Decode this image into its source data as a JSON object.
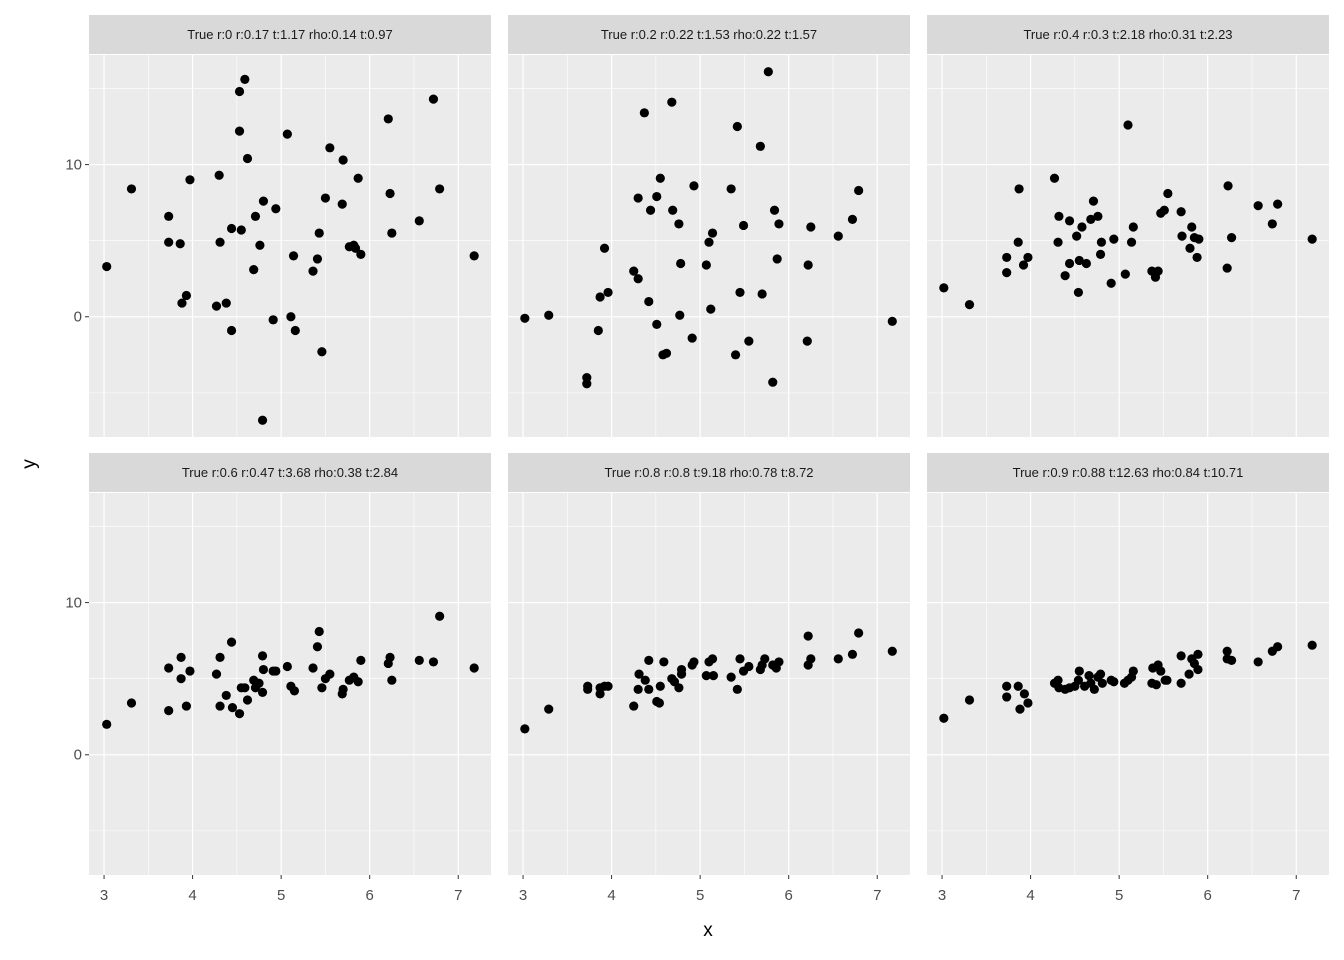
{
  "axis_titles": {
    "x": "x",
    "y": "y"
  },
  "chart_data": [
    {
      "type": "scatter",
      "title": "True r:0  r:0.17  t:1.17  rho:0.14  t:0.97",
      "color": "#000000",
      "xlim": [
        2.83,
        7.37
      ],
      "ylim": [
        -7.9,
        17.2
      ],
      "xticks": [
        3,
        4,
        5,
        6,
        7
      ],
      "yticks": [
        0,
        10
      ],
      "grid": true,
      "x": [
        3.03,
        3.31,
        3.73,
        3.73,
        3.86,
        3.88,
        3.93,
        3.97,
        4.27,
        4.3,
        4.31,
        4.38,
        4.44,
        4.44,
        4.53,
        4.53,
        4.55,
        4.59,
        4.62,
        4.69,
        4.71,
        4.76,
        4.79,
        4.8,
        4.91,
        4.94,
        5.07,
        5.11,
        5.14,
        5.16,
        5.36,
        5.41,
        5.43,
        5.46,
        5.5,
        5.55,
        5.69,
        5.7,
        5.77,
        5.82,
        5.84,
        5.87,
        5.9,
        6.21,
        6.23,
        6.25,
        6.56,
        6.72,
        6.79,
        7.18
      ],
      "y": [
        3.3,
        8.4,
        6.6,
        4.9,
        4.8,
        0.9,
        1.4,
        9.0,
        0.7,
        9.3,
        4.9,
        0.9,
        -0.9,
        5.8,
        14.8,
        12.2,
        5.7,
        15.6,
        10.4,
        3.1,
        6.6,
        4.7,
        -6.8,
        7.6,
        -0.2,
        7.1,
        12.0,
        0.0,
        4.0,
        -0.9,
        3.0,
        3.8,
        5.5,
        -2.3,
        7.8,
        11.1,
        7.4,
        10.3,
        4.6,
        4.7,
        4.5,
        9.1,
        4.1,
        13.0,
        8.1,
        5.5,
        6.3,
        14.3,
        8.4,
        4.0
      ]
    },
    {
      "type": "scatter",
      "title": "True r:0.2  r:0.22  t:1.53  rho:0.22  t:1.57",
      "color": "#000000",
      "xlim": [
        2.83,
        7.37
      ],
      "ylim": [
        -7.9,
        17.2
      ],
      "xticks": [
        3,
        4,
        5,
        6,
        7
      ],
      "yticks": [
        0,
        10
      ],
      "grid": true,
      "x": [
        3.02,
        3.29,
        3.72,
        3.72,
        3.85,
        3.87,
        3.92,
        3.96,
        4.25,
        4.3,
        4.3,
        4.37,
        4.42,
        4.44,
        4.51,
        4.51,
        4.55,
        4.58,
        4.62,
        4.68,
        4.69,
        4.76,
        4.77,
        4.78,
        4.91,
        4.93,
        5.07,
        5.1,
        5.14,
        5.12,
        5.35,
        5.4,
        5.42,
        5.45,
        5.49,
        5.55,
        5.68,
        5.7,
        5.77,
        5.82,
        5.84,
        5.87,
        5.89,
        6.22,
        6.21,
        6.25,
        6.56,
        6.72,
        6.79,
        7.17
      ],
      "y": [
        -0.1,
        0.1,
        -4.0,
        -4.4,
        -0.9,
        1.3,
        4.5,
        1.6,
        3.0,
        2.5,
        7.8,
        13.4,
        1.0,
        7.0,
        -0.5,
        7.9,
        9.1,
        -2.5,
        -2.4,
        14.1,
        7.0,
        6.1,
        0.1,
        3.5,
        -1.4,
        8.6,
        3.4,
        4.9,
        5.5,
        0.5,
        8.4,
        -2.5,
        12.5,
        1.6,
        6.0,
        -1.6,
        11.2,
        1.5,
        16.1,
        -4.3,
        7.0,
        3.8,
        6.1,
        3.4,
        -1.6,
        5.9,
        5.3,
        6.4,
        8.3,
        -0.3
      ]
    },
    {
      "type": "scatter",
      "title": "True r:0.4  r:0.3  t:2.18  rho:0.31  t:2.23",
      "color": "#000000",
      "xlim": [
        2.83,
        7.37
      ],
      "ylim": [
        -7.9,
        17.2
      ],
      "xticks": [
        3,
        4,
        5,
        6,
        7
      ],
      "yticks": [
        0,
        10
      ],
      "grid": true,
      "x": [
        3.02,
        3.31,
        3.73,
        3.73,
        3.86,
        3.87,
        3.92,
        3.97,
        4.27,
        4.31,
        4.32,
        4.39,
        4.44,
        4.44,
        4.52,
        4.54,
        4.55,
        4.58,
        4.63,
        4.68,
        4.71,
        4.76,
        4.79,
        4.8,
        4.91,
        4.94,
        5.07,
        5.1,
        5.14,
        5.16,
        5.37,
        5.41,
        5.44,
        5.47,
        5.51,
        5.55,
        5.7,
        5.71,
        5.8,
        5.82,
        5.85,
        5.88,
        5.9,
        6.22,
        6.23,
        6.27,
        6.57,
        6.73,
        6.79,
        7.18
      ],
      "y": [
        1.9,
        0.8,
        2.9,
        3.9,
        4.9,
        8.4,
        3.4,
        3.9,
        9.1,
        4.9,
        6.6,
        2.7,
        6.3,
        3.5,
        5.3,
        1.6,
        3.7,
        5.9,
        3.5,
        6.4,
        7.6,
        6.6,
        4.1,
        4.9,
        2.2,
        5.1,
        2.8,
        12.6,
        4.9,
        5.9,
        3.0,
        2.6,
        3.0,
        6.8,
        7.0,
        8.1,
        6.9,
        5.3,
        4.5,
        5.9,
        5.2,
        3.9,
        5.1,
        3.2,
        8.6,
        5.2,
        7.3,
        6.1,
        7.4,
        5.1
      ]
    },
    {
      "type": "scatter",
      "title": "True r:0.6  r:0.47  t:3.68  rho:0.38  t:2.84",
      "color": "#000000",
      "xlim": [
        2.83,
        7.37
      ],
      "ylim": [
        -7.9,
        17.2
      ],
      "xticks": [
        3,
        4,
        5,
        6,
        7
      ],
      "yticks": [
        0,
        10
      ],
      "grid": true,
      "x": [
        3.03,
        3.31,
        3.73,
        3.73,
        3.87,
        3.87,
        3.93,
        3.97,
        4.27,
        4.31,
        4.31,
        4.38,
        4.44,
        4.45,
        4.53,
        4.55,
        4.59,
        4.62,
        4.69,
        4.71,
        4.75,
        4.79,
        4.79,
        4.8,
        4.91,
        4.94,
        5.07,
        5.11,
        5.15,
        5.36,
        5.41,
        5.43,
        5.46,
        5.5,
        5.55,
        5.69,
        5.7,
        5.77,
        5.82,
        5.87,
        5.9,
        6.21,
        6.23,
        6.25,
        6.56,
        6.72,
        6.79,
        7.18
      ],
      "y": [
        2.0,
        3.4,
        5.7,
        2.9,
        6.4,
        5.0,
        3.2,
        5.5,
        5.3,
        3.2,
        6.4,
        3.9,
        7.4,
        3.1,
        2.7,
        4.4,
        4.4,
        3.6,
        4.9,
        4.4,
        4.7,
        6.5,
        4.1,
        5.6,
        5.5,
        5.5,
        5.8,
        4.5,
        4.2,
        5.7,
        7.1,
        8.1,
        4.4,
        5.0,
        5.3,
        4.0,
        4.3,
        4.9,
        5.1,
        4.8,
        6.2,
        6.0,
        6.4,
        4.9,
        6.2,
        6.1,
        9.1,
        5.7
      ]
    },
    {
      "type": "scatter",
      "title": "True r:0.8  r:0.8  t:9.18  rho:0.78  t:8.72",
      "color": "#000000",
      "xlim": [
        2.83,
        7.37
      ],
      "ylim": [
        -7.9,
        17.2
      ],
      "xticks": [
        3,
        4,
        5,
        6,
        7
      ],
      "yticks": [
        0,
        10
      ],
      "grid": true,
      "x": [
        3.02,
        3.29,
        3.73,
        3.73,
        3.87,
        3.87,
        3.92,
        3.96,
        4.25,
        4.3,
        4.31,
        4.38,
        4.42,
        4.42,
        4.51,
        4.54,
        4.55,
        4.59,
        4.68,
        4.71,
        4.76,
        4.79,
        4.79,
        4.91,
        4.93,
        5.07,
        5.1,
        5.14,
        5.15,
        5.35,
        5.42,
        5.45,
        5.49,
        5.55,
        5.68,
        5.7,
        5.73,
        5.82,
        5.86,
        5.89,
        6.22,
        6.22,
        6.25,
        6.56,
        6.72,
        6.79,
        7.17
      ],
      "y": [
        1.7,
        3.0,
        4.5,
        4.3,
        4.0,
        4.4,
        4.5,
        4.5,
        3.2,
        4.3,
        5.3,
        4.9,
        6.2,
        4.3,
        3.5,
        3.4,
        4.5,
        6.1,
        5.0,
        4.8,
        4.4,
        5.6,
        5.3,
        5.9,
        6.1,
        5.2,
        6.1,
        6.3,
        5.2,
        5.1,
        4.3,
        6.3,
        5.5,
        5.8,
        5.6,
        5.9,
        6.3,
        5.9,
        5.7,
        6.1,
        7.8,
        5.9,
        6.3,
        6.3,
        6.6,
        8.0,
        6.8
      ]
    },
    {
      "type": "scatter",
      "title": "True r:0.9  r:0.88  t:12.63  rho:0.84  t:10.71",
      "color": "#000000",
      "xlim": [
        2.83,
        7.37
      ],
      "ylim": [
        -7.9,
        17.2
      ],
      "xticks": [
        3,
        4,
        5,
        6,
        7
      ],
      "yticks": [
        0,
        10
      ],
      "grid": true,
      "x": [
        3.02,
        3.31,
        3.73,
        3.73,
        3.86,
        3.88,
        3.93,
        3.97,
        4.27,
        4.31,
        4.32,
        4.39,
        4.44,
        4.5,
        4.54,
        4.55,
        4.61,
        4.66,
        4.68,
        4.72,
        4.76,
        4.79,
        4.81,
        4.91,
        4.94,
        5.06,
        5.1,
        5.14,
        5.16,
        5.37,
        5.38,
        5.42,
        5.44,
        5.47,
        5.52,
        5.54,
        5.7,
        5.7,
        5.79,
        5.82,
        5.85,
        5.89,
        5.89,
        6.22,
        6.22,
        6.27,
        6.57,
        6.73,
        6.79,
        7.18
      ],
      "y": [
        2.4,
        3.6,
        4.5,
        3.8,
        4.5,
        3.0,
        4.0,
        3.4,
        4.7,
        4.9,
        4.4,
        4.3,
        4.4,
        4.5,
        4.9,
        5.5,
        4.5,
        5.2,
        4.7,
        4.3,
        5.1,
        5.3,
        4.7,
        4.9,
        4.8,
        4.7,
        4.9,
        5.1,
        5.5,
        4.7,
        5.7,
        4.6,
        5.9,
        5.5,
        4.9,
        4.9,
        4.7,
        6.5,
        5.3,
        6.3,
        6.0,
        5.6,
        6.6,
        6.8,
        6.3,
        6.2,
        6.1,
        6.8,
        7.1,
        7.2
      ]
    }
  ]
}
